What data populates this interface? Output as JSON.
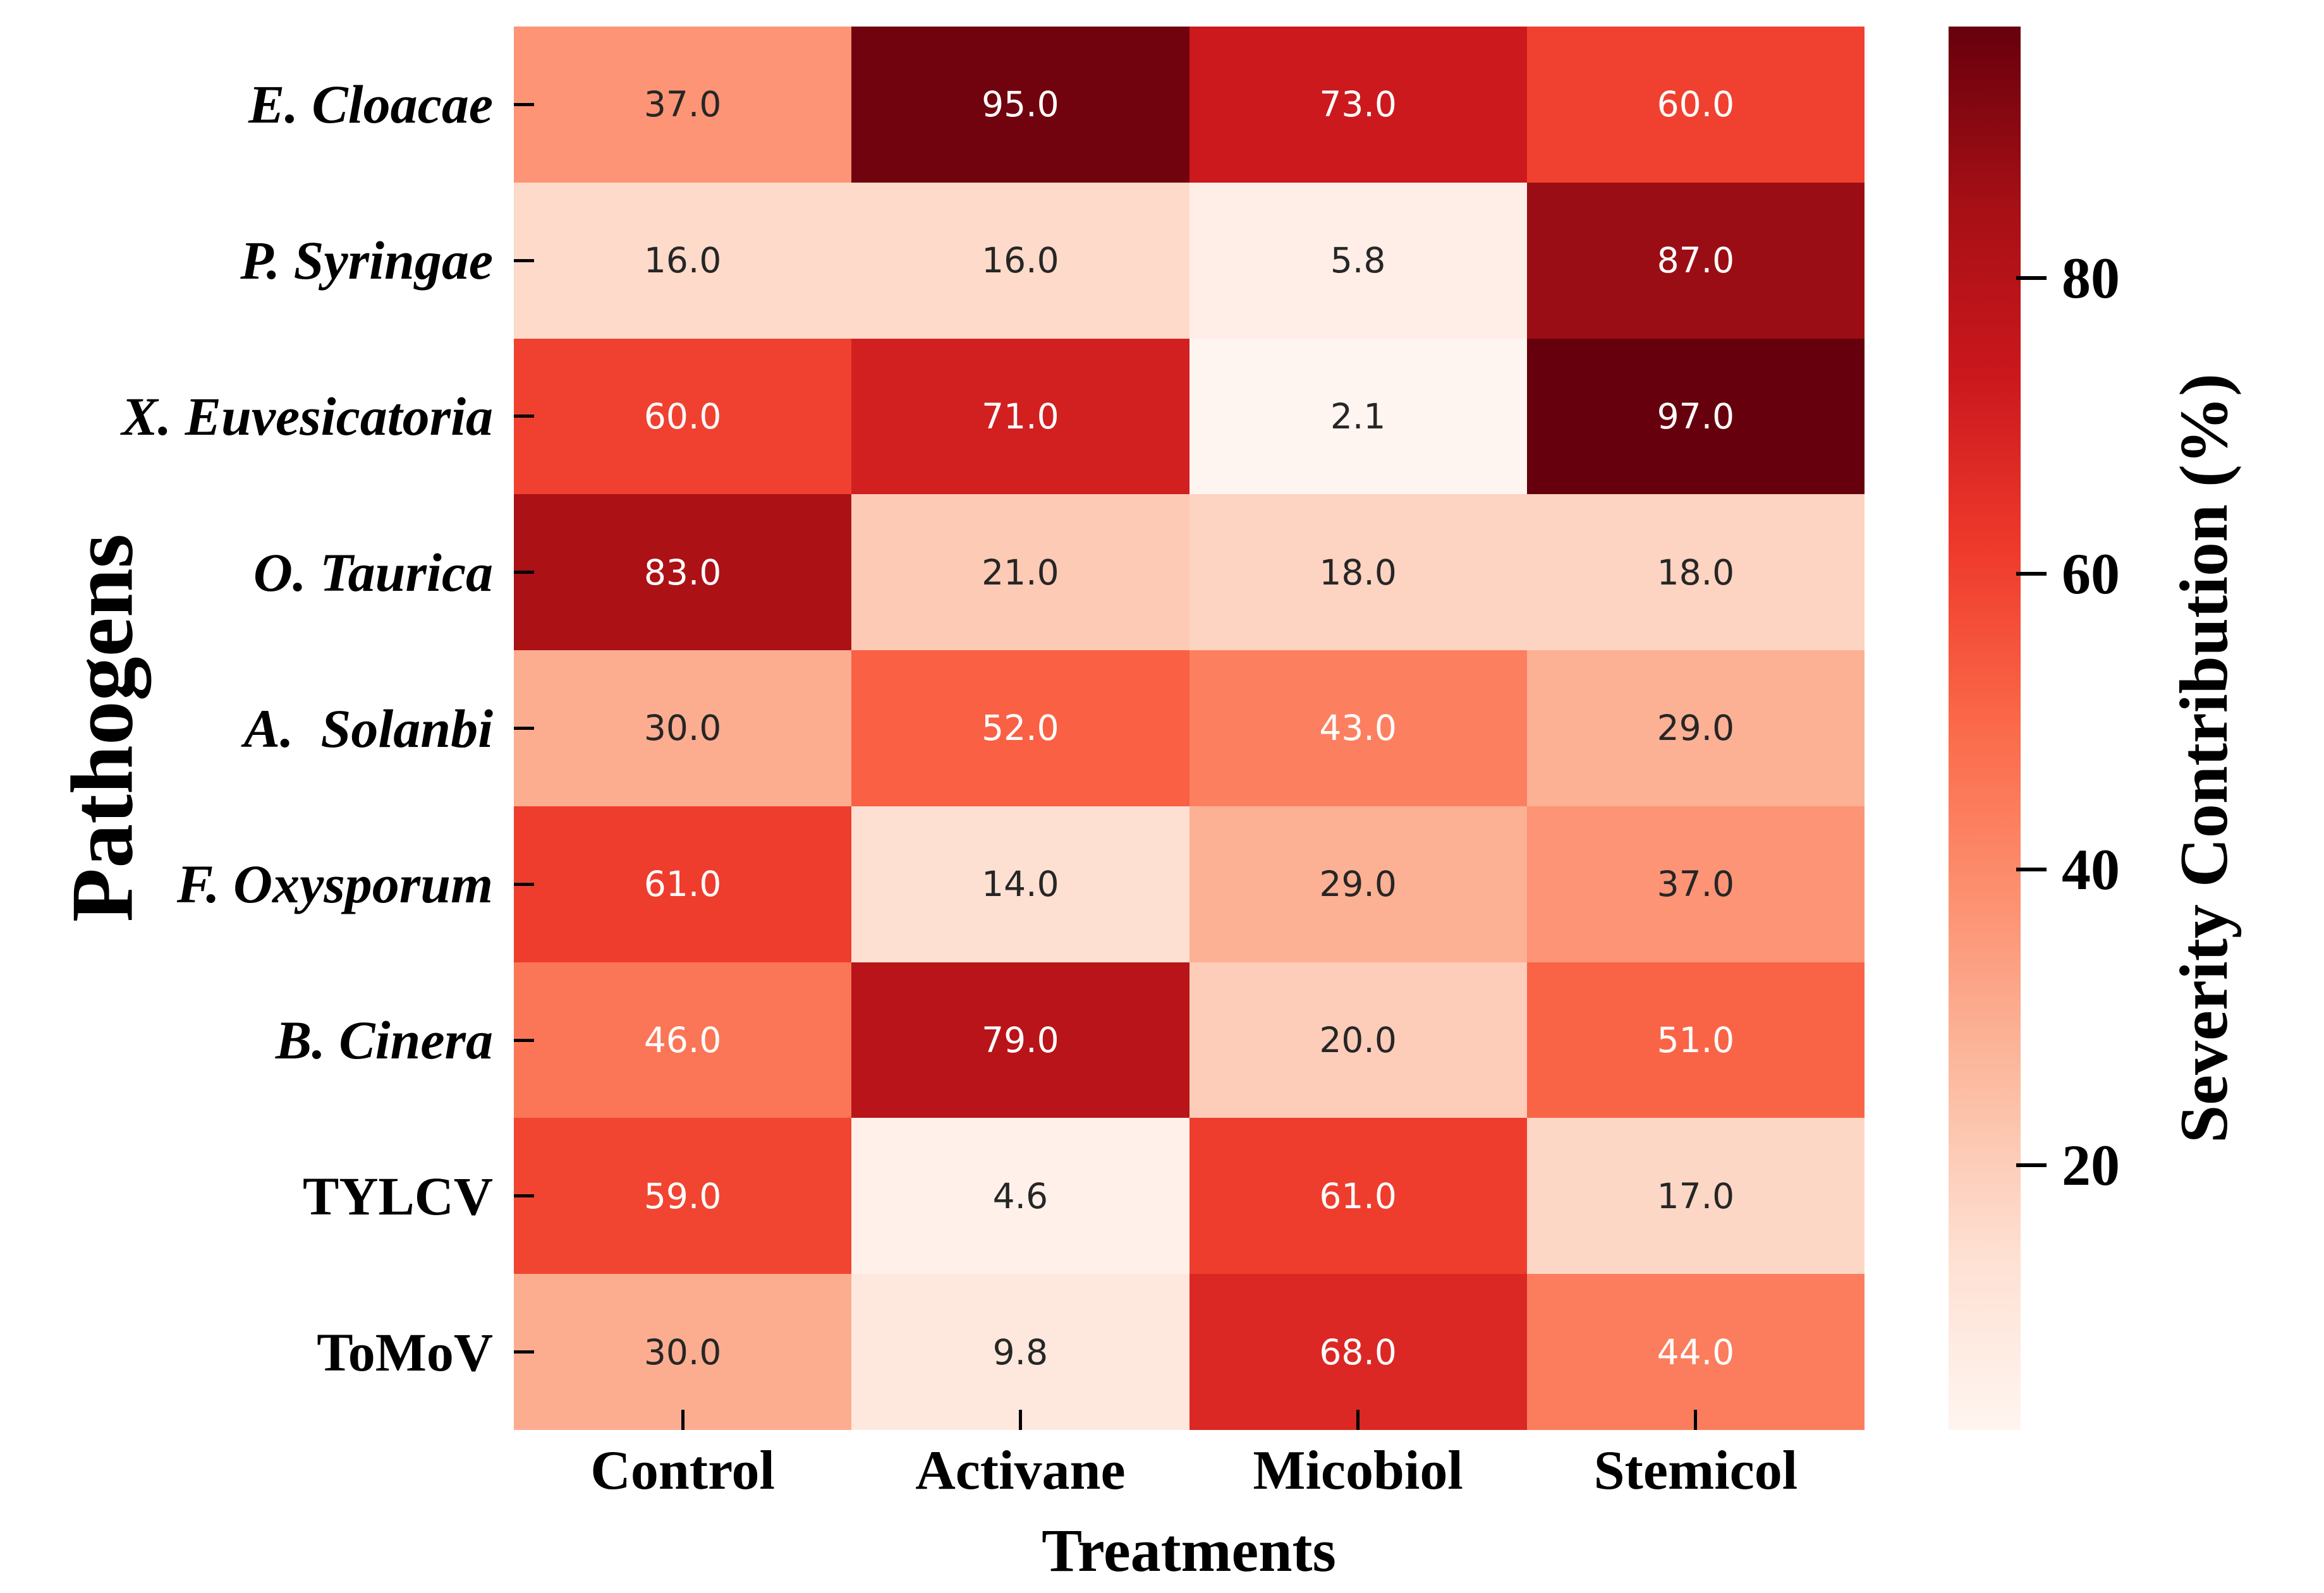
{
  "chart_data": {
    "type": "heatmap",
    "title": "",
    "xlabel": "Treatments",
    "ylabel": "Pathogens",
    "columns": [
      "Control",
      "Activane",
      "Micobiol",
      "Stemicol"
    ],
    "rows": [
      {
        "label": "E. Cloacae",
        "italic": true
      },
      {
        "label": "P. Syringae",
        "italic": true
      },
      {
        "label": "X. Euvesicatoria",
        "italic": true
      },
      {
        "label": "O. Taurica",
        "italic": true
      },
      {
        "label": "A.  Solanbi",
        "italic": true
      },
      {
        "label": "F. Oxysporum",
        "italic": true
      },
      {
        "label": "B. Cinera",
        "italic": true
      },
      {
        "label": "TYLCV",
        "italic": false
      },
      {
        "label": "ToMoV",
        "italic": false
      }
    ],
    "values": [
      [
        37.0,
        95.0,
        73.0,
        60.0
      ],
      [
        16.0,
        16.0,
        5.8,
        87.0
      ],
      [
        60.0,
        71.0,
        2.1,
        97.0
      ],
      [
        83.0,
        21.0,
        18.0,
        18.0
      ],
      [
        30.0,
        52.0,
        43.0,
        29.0
      ],
      [
        61.0,
        14.0,
        29.0,
        37.0
      ],
      [
        46.0,
        79.0,
        20.0,
        51.0
      ],
      [
        59.0,
        4.6,
        61.0,
        17.0
      ],
      [
        30.0,
        9.8,
        68.0,
        44.0
      ]
    ],
    "value_decimals": 1,
    "grid": false,
    "colorbar": {
      "label": "Severity Contribution (%)",
      "ticks": [
        20,
        40,
        60,
        80
      ],
      "vmin": 2.1,
      "vmax": 97.0,
      "colormap": "Reds",
      "colormap_anchors": [
        "#fff5f0",
        "#fee0d2",
        "#fcbba1",
        "#fc9272",
        "#fb6a4a",
        "#ef3b2c",
        "#cb181d",
        "#a50f15",
        "#67000d"
      ],
      "position": "right"
    },
    "annotation_text_colors": {
      "dark": "#262626",
      "light": "#ffffff"
    }
  }
}
